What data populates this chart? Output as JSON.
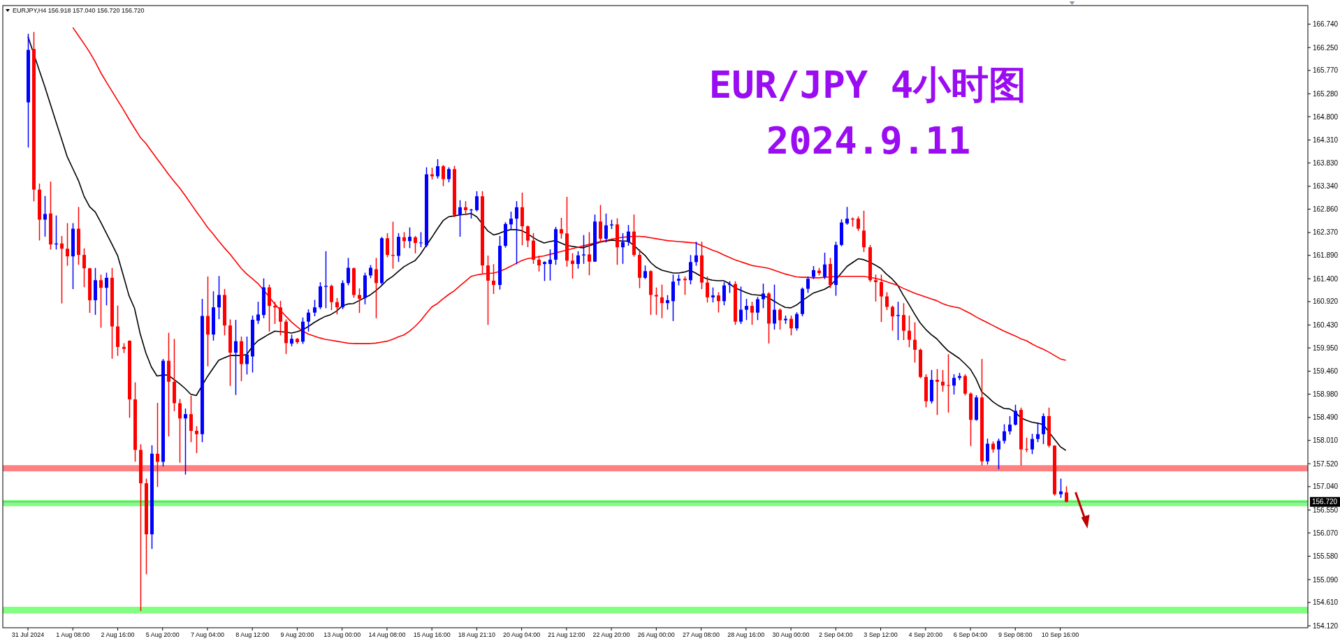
{
  "chart_data": {
    "type": "candlestick",
    "title": "EUR/JPY 4小时图",
    "subtitle": "2024.9.11",
    "annotations": [
      "EURJPY,H4  156.918 157.040 156.720 156.720"
    ],
    "categories": [
      "31 Jul 2024",
      null,
      null,
      null,
      null,
      null,
      null,
      null,
      "1 Aug 08:00",
      null,
      null,
      null,
      null,
      null,
      null,
      null,
      "2 Aug 16:00",
      null,
      null,
      null,
      null,
      null,
      null,
      null,
      "5 Aug 20:00",
      null,
      null,
      null,
      null,
      null,
      null,
      null,
      "7 Aug 04:00",
      null,
      null,
      null,
      null,
      null,
      null,
      null,
      "8 Aug 12:00",
      null,
      null,
      null,
      null,
      null,
      null,
      null,
      "9 Aug 20:00",
      null,
      null,
      null,
      null,
      null,
      null,
      null,
      "13 Aug 00:00",
      null,
      null,
      null,
      null,
      null,
      null,
      null,
      "14 Aug 08:00",
      null,
      null,
      null,
      null,
      null,
      null,
      null,
      "15 Aug 16:00",
      null,
      null,
      null,
      null,
      null,
      null,
      null,
      "18 Aug 21:10",
      null,
      null,
      null,
      null,
      null,
      null,
      null,
      "20 Aug 04:00",
      null,
      null,
      null,
      null,
      null,
      null,
      null,
      "21 Aug 12:00",
      null,
      null,
      null,
      null,
      null,
      null,
      null,
      "22 Aug 20:00",
      null,
      null,
      null,
      null,
      null,
      null,
      null,
      "26 Aug 00:00",
      null,
      null,
      null,
      null,
      null,
      null,
      null,
      "27 Aug 08:00",
      null,
      null,
      null,
      null,
      null,
      null,
      null,
      "28 Aug 16:00",
      null,
      null,
      null,
      null,
      null,
      null,
      null,
      "30 Aug 00:00",
      null,
      null,
      null,
      null,
      null,
      null,
      null,
      "2 Sep 04:00",
      null,
      null,
      null,
      null,
      null,
      null,
      null,
      "3 Sep 12:00",
      null,
      null,
      null,
      null,
      null,
      null,
      null,
      "4 Sep 20:00",
      null,
      null,
      null,
      null,
      null,
      null,
      null,
      "6 Sep 04:00",
      null,
      null,
      null,
      null,
      null,
      null,
      null,
      "9 Sep 08:00",
      null,
      null,
      null,
      null,
      null,
      null,
      null,
      "10 Sep 16:00",
      null
    ],
    "colors": [
      "#0000ff",
      "#ff0000",
      "#ff0000",
      "#0000ff",
      "#ff0000",
      "#0000ff",
      "#ff0000",
      "#ff0000",
      "#0000ff",
      "#ff0000",
      "#ff0000",
      "#ff0000",
      "#0000ff",
      "#ff0000",
      "#0000ff",
      "#ff0000",
      "#ff0000",
      "#ff0000",
      "#ff0000",
      "#ff0000",
      "#ff0000",
      "#ff0000",
      "#0000ff",
      "#ff0000",
      "#0000ff",
      "#ff0000",
      "#ff0000",
      "#ff0000",
      "#0000ff",
      "#ff0000",
      "#ff0000",
      "#0000ff",
      "#ff0000",
      "#0000ff",
      "#0000ff",
      "#ff0000",
      "#ff0000",
      "#0000ff",
      "#ff0000",
      "#0000ff",
      "#0000ff",
      "#0000ff",
      "#0000ff",
      "#ff0000",
      "#ff0000",
      "#ff0000",
      "#ff0000",
      "#0000ff",
      "#ff0000",
      "#0000ff",
      "#0000ff",
      "#0000ff",
      "#0000ff",
      "#0000ff",
      "#ff0000",
      "#ff0000",
      "#0000ff",
      "#0000ff",
      "#ff0000",
      "#ff0000",
      "#0000ff",
      "#0000ff",
      "#ff0000",
      "#0000ff",
      "#ff0000",
      "#ff0000",
      "#0000ff",
      "#ff0000",
      "#0000ff",
      "#ff0000",
      "#0000ff",
      "#0000ff",
      "#ff0000",
      "#0000ff",
      "#ff0000",
      "#0000ff",
      "#ff0000",
      "#0000ff",
      "#ff0000",
      "#0000ff",
      "#0000ff",
      "#ff0000",
      "#ff0000",
      "#ff0000",
      "#0000ff",
      "#0000ff",
      "#0000ff",
      "#0000ff",
      "#ff0000",
      "#ff0000",
      "#ff0000",
      "#ff0000",
      "#0000ff",
      "#0000ff",
      "#0000ff",
      "#ff0000",
      "#ff0000",
      "#ff0000",
      "#0000ff",
      "#0000ff",
      "#ff0000",
      "#0000ff",
      "#ff0000",
      "#0000ff",
      "#0000ff",
      "#ff0000",
      "#0000ff",
      "#0000ff",
      "#ff0000",
      "#ff0000",
      "#0000ff",
      "#ff0000",
      "#ff0000",
      "#ff0000",
      "#0000ff",
      "#0000ff",
      "#0000ff",
      "#ff0000",
      "#0000ff",
      "#0000ff",
      "#ff0000",
      "#ff0000",
      "#0000ff",
      "#ff0000",
      "#0000ff",
      "#0000ff",
      "#ff0000",
      "#0000ff",
      "#0000ff",
      "#ff0000",
      "#0000ff",
      "#0000ff",
      "#ff0000",
      "#0000ff",
      "#ff0000",
      "#0000ff",
      "#ff0000",
      "#0000ff",
      "#0000ff",
      "#0000ff",
      "#0000ff",
      "#ff0000",
      "#0000ff",
      "#ff0000",
      "#0000ff",
      "#0000ff",
      "#0000ff",
      "#ff0000",
      "#ff0000",
      "#ff0000",
      "#ff0000",
      "#ff0000",
      "#ff0000",
      "#ff0000",
      "#ff0000",
      "#0000ff",
      "#ff0000",
      "#ff0000",
      "#ff0000",
      "#ff0000",
      "#ff0000",
      "#0000ff",
      "#ff0000",
      "#ff0000",
      "#ff0000",
      "#0000ff",
      "#0000ff",
      "#ff0000",
      "#ff0000",
      "#0000ff",
      "#ff0000",
      "#0000ff",
      "#ff0000",
      "#0000ff",
      "#0000ff",
      "#0000ff",
      "#0000ff",
      "#ff0000",
      "#ff0000",
      "#0000ff",
      "#0000ff",
      "#0000ff",
      "#ff0000",
      "#ff0000",
      "#0000ff",
      "#ff0000"
    ],
    "ohlc": [
      [
        165.1,
        166.53,
        164.16,
        166.2
      ],
      [
        166.22,
        166.57,
        163.03,
        163.27
      ],
      [
        163.27,
        163.39,
        162.21,
        162.64
      ],
      [
        162.64,
        163.13,
        162.29,
        162.76
      ],
      [
        162.77,
        163.43,
        162.02,
        162.12
      ],
      [
        162.12,
        162.72,
        162.02,
        162.14
      ],
      [
        162.14,
        162.29,
        160.89,
        162.03
      ],
      [
        162.03,
        162.56,
        161.68,
        161.87
      ],
      [
        161.87,
        162.56,
        161.19,
        162.45
      ],
      [
        162.45,
        162.9,
        161.7,
        161.9
      ],
      [
        161.9,
        162.03,
        161.23,
        161.62
      ],
      [
        161.62,
        161.62,
        160.69,
        160.95
      ],
      [
        160.95,
        161.62,
        160.65,
        161.37
      ],
      [
        161.37,
        161.48,
        160.38,
        161.21
      ],
      [
        161.21,
        161.52,
        160.85,
        161.42
      ],
      [
        161.42,
        161.62,
        159.73,
        160.4
      ],
      [
        160.4,
        160.83,
        159.79,
        159.97
      ],
      [
        159.97,
        160.04,
        159.85,
        159.93
      ],
      [
        160.1,
        160.1,
        158.49,
        158.87
      ],
      [
        158.87,
        159.22,
        157.57,
        157.81
      ],
      [
        157.81,
        157.92,
        154.44,
        157.11
      ],
      [
        157.11,
        157.2,
        155.21,
        156.04
      ],
      [
        156.04,
        157.9,
        155.74,
        157.73
      ],
      [
        157.73,
        158.79,
        157.04,
        157.56
      ],
      [
        157.56,
        159.71,
        157.47,
        159.68
      ],
      [
        159.68,
        160.26,
        158.1,
        159.24
      ],
      [
        159.24,
        160.13,
        158.63,
        158.79
      ],
      [
        158.79,
        158.87,
        157.55,
        158.47
      ],
      [
        158.47,
        158.67,
        157.3,
        158.56
      ],
      [
        158.56,
        158.94,
        157.98,
        158.21
      ],
      [
        158.21,
        158.3,
        157.75,
        158.14
      ],
      [
        158.14,
        160.97,
        157.98,
        160.62
      ],
      [
        160.62,
        161.44,
        159.57,
        160.23
      ],
      [
        160.23,
        161.13,
        160.11,
        160.8
      ],
      [
        160.8,
        161.45,
        160.56,
        161.06
      ],
      [
        161.06,
        161.18,
        160.22,
        160.42
      ],
      [
        160.42,
        160.54,
        159.16,
        159.85
      ],
      [
        159.85,
        160.53,
        158.97,
        160.09
      ],
      [
        160.09,
        160.18,
        159.26,
        159.61
      ],
      [
        159.61,
        160.18,
        159.4,
        159.81
      ],
      [
        159.77,
        160.62,
        159.44,
        160.54
      ],
      [
        160.52,
        160.91,
        160.46,
        160.65
      ],
      [
        160.64,
        161.4,
        160.58,
        161.22
      ],
      [
        161.22,
        161.27,
        160.3,
        160.83
      ],
      [
        160.83,
        160.91,
        160.46,
        160.8
      ],
      [
        160.8,
        160.93,
        160.22,
        160.5
      ],
      [
        160.5,
        160.54,
        159.83,
        160.05
      ],
      [
        160.04,
        160.22,
        159.99,
        160.14
      ],
      [
        160.14,
        160.15,
        160.04,
        160.07
      ],
      [
        160.08,
        160.58,
        160.04,
        160.5
      ],
      [
        160.5,
        160.75,
        160.3,
        160.69
      ],
      [
        160.69,
        160.95,
        160.62,
        160.8
      ],
      [
        160.8,
        161.32,
        160.77,
        161.24
      ],
      [
        161.23,
        161.97,
        160.79,
        161.25
      ],
      [
        161.25,
        161.27,
        160.75,
        160.91
      ],
      [
        160.91,
        160.99,
        160.66,
        160.8
      ],
      [
        160.8,
        161.36,
        160.77,
        161.31
      ],
      [
        161.31,
        161.83,
        161.27,
        161.63
      ],
      [
        161.62,
        161.63,
        161.01,
        161.06
      ],
      [
        161.06,
        161.19,
        160.69,
        160.98
      ],
      [
        161.0,
        161.52,
        160.87,
        161.47
      ],
      [
        161.47,
        161.68,
        161.42,
        161.63
      ],
      [
        161.6,
        161.83,
        160.58,
        161.31
      ],
      [
        161.31,
        162.27,
        161.27,
        162.25
      ],
      [
        162.25,
        162.35,
        161.86,
        161.9
      ],
      [
        161.9,
        162.59,
        161.62,
        161.88
      ],
      [
        161.88,
        162.35,
        161.76,
        162.28
      ],
      [
        162.27,
        162.37,
        162.05,
        162.19
      ],
      [
        162.19,
        162.47,
        162.05,
        162.28
      ],
      [
        162.27,
        162.29,
        161.94,
        162.15
      ],
      [
        162.15,
        162.37,
        162.07,
        162.16
      ],
      [
        162.1,
        163.73,
        162.07,
        163.59
      ],
      [
        163.59,
        163.72,
        163.49,
        163.55
      ],
      [
        163.55,
        163.9,
        163.51,
        163.76
      ],
      [
        163.76,
        163.78,
        163.35,
        163.49
      ],
      [
        163.49,
        163.73,
        163.43,
        163.7
      ],
      [
        163.7,
        163.76,
        162.7,
        162.74
      ],
      [
        162.74,
        163.04,
        162.29,
        162.9
      ],
      [
        162.9,
        163.02,
        162.74,
        162.84
      ],
      [
        162.84,
        162.86,
        162.67,
        162.85
      ],
      [
        162.84,
        163.23,
        162.82,
        163.13
      ],
      [
        163.13,
        163.23,
        161.52,
        161.68
      ],
      [
        161.68,
        161.88,
        160.44,
        161.36
      ],
      [
        161.36,
        161.7,
        161.09,
        161.27
      ],
      [
        161.27,
        162.29,
        161.18,
        162.09
      ],
      [
        162.09,
        162.58,
        162.06,
        162.55
      ],
      [
        162.54,
        162.8,
        162.43,
        162.66
      ],
      [
        162.66,
        163.02,
        161.71,
        162.9
      ],
      [
        162.9,
        163.2,
        162.11,
        162.5
      ],
      [
        162.5,
        162.51,
        162.07,
        162.2
      ],
      [
        162.2,
        162.35,
        161.72,
        161.8
      ],
      [
        161.8,
        161.88,
        161.56,
        161.68
      ],
      [
        161.71,
        161.76,
        161.36,
        161.75
      ],
      [
        161.71,
        162.01,
        161.37,
        161.8
      ],
      [
        161.8,
        162.48,
        161.7,
        162.44
      ],
      [
        162.44,
        162.67,
        162.25,
        162.35
      ],
      [
        162.35,
        163.11,
        161.66,
        161.78
      ],
      [
        161.78,
        161.93,
        161.41,
        161.71
      ],
      [
        161.71,
        161.97,
        161.62,
        161.89
      ],
      [
        161.89,
        162.31,
        161.72,
        161.91
      ],
      [
        161.91,
        162.37,
        161.48,
        161.76
      ],
      [
        161.76,
        162.74,
        161.76,
        162.6
      ],
      [
        162.6,
        162.94,
        162.17,
        162.24
      ],
      [
        162.24,
        162.76,
        162.17,
        162.52
      ],
      [
        162.52,
        162.63,
        162.45,
        162.54
      ],
      [
        162.54,
        162.66,
        161.7,
        162.06
      ],
      [
        162.06,
        162.35,
        161.72,
        162.17
      ],
      [
        162.17,
        162.52,
        162.1,
        162.39
      ],
      [
        162.39,
        162.74,
        161.87,
        161.9
      ],
      [
        161.9,
        162.01,
        161.21,
        161.42
      ],
      [
        161.42,
        161.67,
        161.4,
        161.56
      ],
      [
        161.56,
        161.57,
        160.65,
        161.06
      ],
      [
        161.06,
        161.21,
        160.65,
        161.03
      ],
      [
        161.01,
        161.27,
        160.58,
        160.89
      ],
      [
        160.89,
        161.05,
        160.76,
        160.95
      ],
      [
        160.93,
        161.48,
        160.52,
        161.34
      ],
      [
        161.36,
        161.48,
        161.27,
        161.4
      ],
      [
        161.4,
        161.44,
        161.07,
        161.37
      ],
      [
        161.37,
        161.89,
        161.29,
        161.75
      ],
      [
        161.75,
        162.17,
        161.68,
        161.89
      ],
      [
        161.89,
        162.17,
        161.19,
        161.32
      ],
      [
        161.32,
        161.44,
        160.91,
        161.01
      ],
      [
        161.01,
        161.21,
        160.91,
        161.05
      ],
      [
        161.05,
        161.11,
        160.7,
        160.93
      ],
      [
        160.93,
        161.32,
        160.85,
        161.26
      ],
      [
        161.27,
        161.34,
        161.11,
        161.29
      ],
      [
        161.29,
        161.34,
        160.44,
        160.5
      ],
      [
        160.5,
        161.23,
        160.46,
        160.75
      ],
      [
        160.75,
        160.97,
        160.54,
        160.83
      ],
      [
        160.83,
        160.91,
        160.44,
        160.69
      ],
      [
        160.69,
        161.01,
        160.54,
        160.97
      ],
      [
        160.97,
        161.29,
        160.79,
        161.09
      ],
      [
        161.09,
        161.11,
        160.05,
        160.46
      ],
      [
        160.46,
        161.27,
        160.34,
        160.75
      ],
      [
        160.75,
        160.77,
        160.34,
        160.53
      ],
      [
        160.53,
        160.62,
        160.46,
        160.56
      ],
      [
        160.56,
        160.62,
        160.22,
        160.36
      ],
      [
        160.36,
        160.69,
        160.32,
        160.66
      ],
      [
        160.66,
        161.21,
        160.62,
        161.19
      ],
      [
        161.19,
        161.44,
        161.11,
        161.4
      ],
      [
        161.44,
        161.66,
        161.4,
        161.58
      ],
      [
        161.57,
        161.62,
        161.48,
        161.52
      ],
      [
        161.44,
        161.94,
        161.4,
        161.7
      ],
      [
        161.71,
        161.83,
        161.21,
        161.27
      ],
      [
        161.27,
        162.17,
        161.05,
        162.11
      ],
      [
        162.11,
        162.64,
        162.09,
        162.58
      ],
      [
        162.56,
        162.9,
        162.54,
        162.66
      ],
      [
        162.66,
        162.68,
        162.5,
        162.64
      ],
      [
        162.66,
        162.7,
        162.41,
        162.45
      ],
      [
        162.41,
        162.82,
        161.97,
        162.06
      ],
      [
        162.06,
        162.1,
        161.34,
        161.37
      ],
      [
        161.37,
        161.48,
        160.93,
        161.33
      ],
      [
        161.33,
        161.48,
        160.5,
        161.03
      ],
      [
        161.03,
        161.11,
        160.75,
        160.81
      ],
      [
        160.81,
        160.83,
        160.32,
        160.61
      ],
      [
        160.62,
        160.91,
        160.12,
        160.64
      ],
      [
        160.64,
        160.88,
        160.12,
        160.31
      ],
      [
        160.31,
        160.62,
        159.97,
        160.12
      ],
      [
        160.12,
        160.48,
        159.65,
        159.91
      ],
      [
        159.91,
        159.93,
        159.32,
        159.34
      ],
      [
        159.34,
        159.39,
        158.71,
        158.83
      ],
      [
        158.83,
        159.48,
        158.79,
        159.28
      ],
      [
        159.28,
        159.5,
        158.55,
        159.24
      ],
      [
        159.24,
        159.48,
        159.04,
        159.16
      ],
      [
        159.17,
        159.81,
        158.6,
        159.16
      ],
      [
        159.16,
        159.39,
        158.98,
        159.32
      ],
      [
        159.32,
        159.42,
        159.28,
        159.36
      ],
      [
        159.36,
        159.39,
        158.96,
        158.99
      ],
      [
        158.99,
        159.01,
        157.9,
        158.44
      ],
      [
        158.44,
        158.95,
        158.43,
        158.91
      ],
      [
        158.91,
        159.71,
        157.49,
        157.57
      ],
      [
        157.57,
        158.04,
        157.51,
        157.94
      ],
      [
        157.94,
        157.98,
        157.76,
        157.82
      ],
      [
        157.82,
        158.04,
        157.41,
        158.0
      ],
      [
        158.0,
        158.34,
        157.95,
        158.2
      ],
      [
        158.2,
        158.51,
        158.14,
        158.34
      ],
      [
        158.34,
        158.75,
        158.33,
        158.63
      ],
      [
        158.65,
        158.69,
        157.49,
        157.82
      ],
      [
        157.83,
        158.06,
        157.77,
        157.82
      ],
      [
        157.82,
        158.14,
        157.73,
        158.04
      ],
      [
        158.04,
        158.38,
        157.98,
        158.14
      ],
      [
        158.14,
        158.57,
        157.94,
        158.52
      ],
      [
        158.52,
        158.69,
        157.87,
        157.9
      ],
      [
        157.9,
        157.9,
        156.86,
        156.88
      ],
      [
        156.88,
        157.2,
        156.81,
        156.94
      ],
      [
        156.918,
        157.04,
        156.72,
        156.72
      ]
    ],
    "series": [
      {
        "type": "line",
        "color": "#000000",
        "values": [
          166.48,
          null,
          165.78,
          165.43,
          165.06,
          164.69,
          164.33,
          163.96,
          163.71,
          163.46,
          163.13,
          162.91,
          162.8,
          162.58,
          162.35,
          162.12,
          161.88,
          161.47,
          161.05,
          160.78,
          160.25,
          159.85,
          159.55,
          159.36,
          159.38,
          159.38,
          159.29,
          159.2,
          159.1,
          158.98,
          158.95,
          null,
          159.35,
          159.52,
          159.69,
          159.74,
          159.79,
          159.79,
          159.79,
          159.81,
          159.98,
          160.1,
          160.17,
          160.24,
          160.3,
          160.29,
          160.28,
          160.26,
          160.29,
          160.33,
          160.4,
          160.48,
          160.55,
          160.61,
          160.65,
          160.72,
          160.83,
          160.87,
          160.88,
          160.94,
          161.0,
          161.06,
          161.15,
          161.25,
          161.37,
          161.45,
          161.55,
          161.65,
          161.72,
          161.78,
          161.92,
          162.1,
          162.27,
          162.45,
          162.62,
          162.7,
          162.72,
          162.74,
          162.75,
          162.77,
          162.7,
          162.55,
          162.4,
          162.32,
          162.35,
          162.4,
          162.43,
          162.43,
          162.41,
          162.35,
          162.27,
          162.2,
          162.15,
          162.18,
          162.2,
          162.15,
          162.1,
          162.08,
          162.06,
          162.05,
          162.09,
          162.13,
          162.17,
          null,
          162.21,
          162.2,
          162.19,
          162.19,
          162.1,
          161.99,
          161.89,
          161.74,
          161.64,
          161.58,
          161.55,
          161.52,
          161.52,
          161.54,
          161.58,
          161.52,
          161.45,
          161.4,
          161.37,
          161.36,
          161.36,
          161.3,
          161.21,
          161.16,
          161.11,
          161.07,
          161.06,
          161.05,
          161.0,
          160.93,
          160.86,
          160.8,
          160.79,
          160.85,
          160.94,
          161.02,
          161.1,
          161.14,
          161.18,
          161.25,
          161.38,
          161.52,
          161.66,
          161.74,
          161.82,
          161.8,
          161.75,
          161.69,
          161.62,
          161.5,
          161.4,
          161.27,
          161.06,
          160.87,
          160.67,
          160.48,
          160.34,
          160.23,
          160.14,
          160.01,
          159.89,
          159.81,
          159.73,
          159.62,
          159.5,
          159.3,
          159.03,
          158.93,
          158.82,
          158.74,
          158.68,
          158.67,
          158.6,
          158.48,
          158.43,
          158.39,
          158.37,
          158.34,
          158.18,
          158.03,
          157.88,
          157.8
        ]
      },
      {
        "type": "line",
        "color": "#ff0000",
        "values": [
          null,
          null,
          null,
          null,
          null,
          null,
          null,
          null,
          166.67,
          166.5,
          166.33,
          166.15,
          165.95,
          165.72,
          165.52,
          165.33,
          165.14,
          164.95,
          164.75,
          164.56,
          164.37,
          164.24,
          164.08,
          163.92,
          163.76,
          163.6,
          163.45,
          163.31,
          163.15,
          162.98,
          162.81,
          162.65,
          162.48,
          162.34,
          162.19,
          162.05,
          161.92,
          161.77,
          161.62,
          161.5,
          161.4,
          161.3,
          161.16,
          161.02,
          160.87,
          160.74,
          160.61,
          160.49,
          160.39,
          160.3,
          160.24,
          160.2,
          160.16,
          160.13,
          160.11,
          160.09,
          160.07,
          160.05,
          160.04,
          160.04,
          160.04,
          160.04,
          160.05,
          160.07,
          160.09,
          160.13,
          160.18,
          160.22,
          160.3,
          160.4,
          160.52,
          160.67,
          160.81,
          160.88,
          160.98,
          161.07,
          161.15,
          161.25,
          161.35,
          161.45,
          161.48,
          161.5,
          161.51,
          161.52,
          161.55,
          161.6,
          161.66,
          161.72,
          161.78,
          161.82,
          161.84,
          161.86,
          161.88,
          161.91,
          161.94,
          161.97,
          162.0,
          162.03,
          162.06,
          162.09,
          162.12,
          162.15,
          162.18,
          162.2,
          162.23,
          162.25,
          162.27,
          162.28,
          162.29,
          162.29,
          162.28,
          162.26,
          162.24,
          162.22,
          162.2,
          162.19,
          162.18,
          162.17,
          162.16,
          162.15,
          162.1,
          162.05,
          162.0,
          161.96,
          161.9,
          161.85,
          161.8,
          161.76,
          161.72,
          161.68,
          161.66,
          161.64,
          161.62,
          161.58,
          161.54,
          161.5,
          161.47,
          161.44,
          161.43,
          161.43,
          161.42,
          161.42,
          161.43,
          161.44,
          161.45,
          161.45,
          161.45,
          161.45,
          161.45,
          161.45,
          161.43,
          161.41,
          161.38,
          161.34,
          161.3,
          161.26,
          161.2,
          161.15,
          161.1,
          161.06,
          161.02,
          160.98,
          160.94,
          160.88,
          160.84,
          160.81,
          160.79,
          160.73,
          160.67,
          160.6,
          160.54,
          160.48,
          160.42,
          160.36,
          160.3,
          160.25,
          160.2,
          160.14,
          160.1,
          160.03,
          159.97,
          159.92,
          159.86,
          159.79,
          159.72,
          159.69
        ]
      }
    ],
    "ylim": [
      154.08,
      167.13
    ],
    "yticks": [
      {
        "value": 166.74,
        "label": "166.740"
      },
      {
        "value": 166.25,
        "label": "166.250"
      },
      {
        "value": 165.77,
        "label": "165.770"
      },
      {
        "value": 165.28,
        "label": "165.280"
      },
      {
        "value": 164.8,
        "label": "164.800"
      },
      {
        "value": 164.31,
        "label": "164.310"
      },
      {
        "value": 163.83,
        "label": "163.830"
      },
      {
        "value": 163.34,
        "label": "163.340"
      },
      {
        "value": 162.86,
        "label": "162.860"
      },
      {
        "value": 162.37,
        "label": "162.370"
      },
      {
        "value": 161.89,
        "label": "161.890"
      },
      {
        "value": 161.4,
        "label": "161.400"
      },
      {
        "value": 160.92,
        "label": "160.920"
      },
      {
        "value": 160.43,
        "label": "160.430"
      },
      {
        "value": 159.95,
        "label": "159.950"
      },
      {
        "value": 159.46,
        "label": "159.460"
      },
      {
        "value": 158.98,
        "label": "158.980"
      },
      {
        "value": 158.49,
        "label": "158.490"
      },
      {
        "value": 158.01,
        "label": "158.010"
      },
      {
        "value": 157.52,
        "label": "157.520"
      },
      {
        "value": 157.04,
        "label": "157.040"
      },
      {
        "value": 156.55,
        "label": "156.550"
      },
      {
        "value": 156.07,
        "label": "156.070"
      },
      {
        "value": 155.58,
        "label": "155.580"
      },
      {
        "value": 155.09,
        "label": "155.090"
      },
      {
        "value": 154.61,
        "label": "154.610"
      },
      {
        "value": 154.12,
        "label": "154.120"
      }
    ],
    "bands": [
      {
        "axis": "y",
        "from": 157.36,
        "to": 157.49,
        "color": "#ff8080"
      },
      {
        "axis": "y",
        "from": 156.63,
        "to": 156.76,
        "color": "#80ff80"
      },
      {
        "axis": "y",
        "from": 154.38,
        "to": 154.52,
        "color": "#80ff80"
      }
    ],
    "ref_lines": [
      {
        "axis": "y",
        "value": 156.72,
        "label": "156.720",
        "color": "#7f8fa0"
      }
    ],
    "grid": false,
    "legend": false
  }
}
